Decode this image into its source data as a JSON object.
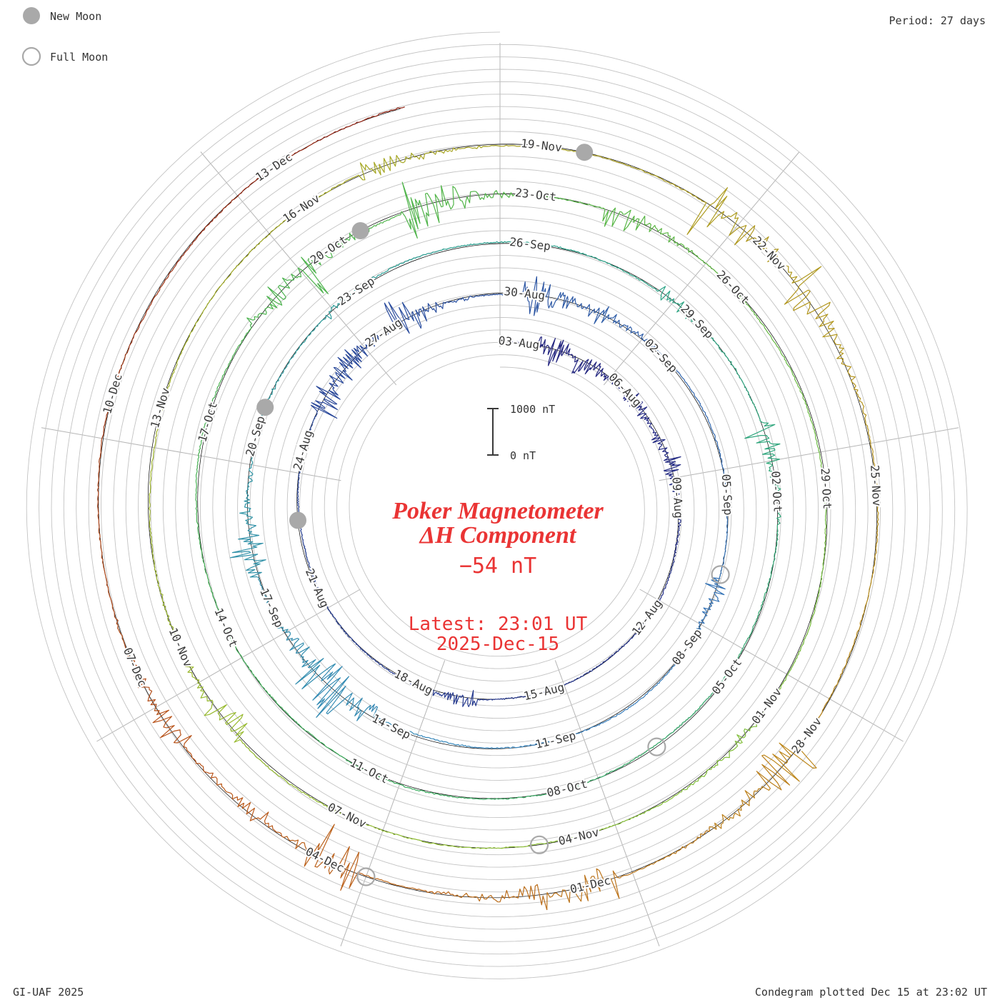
{
  "legend": {
    "new_moon": "New Moon",
    "full_moon": "Full Moon"
  },
  "header": {
    "period": "Period: 27 days"
  },
  "footer": {
    "left": "GI-UAF 2025",
    "right": "Condegram plotted Dec 15 at 23:02 UT"
  },
  "center": {
    "title_line1": "Poker Magnetometer",
    "title_line2": "ΔH Component",
    "current_value": "−54 nT",
    "latest_line1": "Latest: 23:01 UT",
    "latest_line2": "2025-Dec-15"
  },
  "scale": {
    "top": "1000 nT",
    "bottom": "0 nT"
  },
  "chart_data": {
    "type": "line",
    "projection": "polar-spiral-condegram",
    "title": "Poker Magnetometer ΔH Component",
    "station": "Poker",
    "component": "ΔH",
    "current_value_nT": -54,
    "latest_time": "23:01 UT",
    "latest_date": "2025-Dec-15",
    "angular_period_days": 27,
    "label_interval_days": 3,
    "start_date": "03-Aug",
    "end_date": "15-Dec",
    "scale_bar": {
      "labels": [
        "1000 nT",
        "0 nT"
      ],
      "span_nT": 1000
    },
    "rotations": [
      {
        "start": "03-Aug",
        "end": "30-Aug",
        "color_range": "navy to blue"
      },
      {
        "start": "30-Aug",
        "end": "26-Sep",
        "color_range": "blue to teal"
      },
      {
        "start": "26-Sep",
        "end": "23-Oct",
        "color_range": "teal to green"
      },
      {
        "start": "23-Oct",
        "end": "19-Nov",
        "color_range": "green to olive"
      },
      {
        "start": "19-Nov",
        "end": "15-Dec",
        "color_range": "olive to orange to dark red"
      }
    ],
    "date_labels": [
      {
        "date": "03-Aug",
        "day": 0
      },
      {
        "date": "06-Aug",
        "day": 3
      },
      {
        "date": "09-Aug",
        "day": 6
      },
      {
        "date": "12-Aug",
        "day": 9
      },
      {
        "date": "15-Aug",
        "day": 12
      },
      {
        "date": "18-Aug",
        "day": 15
      },
      {
        "date": "21-Aug",
        "day": 18
      },
      {
        "date": "24-Aug",
        "day": 21
      },
      {
        "date": "27-Aug",
        "day": 24
      },
      {
        "date": "30-Aug",
        "day": 27
      },
      {
        "date": "02-Sep",
        "day": 30
      },
      {
        "date": "05-Sep",
        "day": 33
      },
      {
        "date": "08-Sep",
        "day": 36
      },
      {
        "date": "11-Sep",
        "day": 39
      },
      {
        "date": "14-Sep",
        "day": 42
      },
      {
        "date": "17-Sep",
        "day": 45
      },
      {
        "date": "20-Sep",
        "day": 48
      },
      {
        "date": "23-Sep",
        "day": 51
      },
      {
        "date": "26-Sep",
        "day": 54
      },
      {
        "date": "29-Sep",
        "day": 57
      },
      {
        "date": "02-Oct",
        "day": 60
      },
      {
        "date": "05-Oct",
        "day": 63
      },
      {
        "date": "08-Oct",
        "day": 66
      },
      {
        "date": "11-Oct",
        "day": 69
      },
      {
        "date": "14-Oct",
        "day": 72
      },
      {
        "date": "17-Oct",
        "day": 75
      },
      {
        "date": "20-Oct",
        "day": 78
      },
      {
        "date": "23-Oct",
        "day": 81
      },
      {
        "date": "26-Oct",
        "day": 84
      },
      {
        "date": "29-Oct",
        "day": 87
      },
      {
        "date": "01-Nov",
        "day": 90
      },
      {
        "date": "04-Nov",
        "day": 93
      },
      {
        "date": "07-Nov",
        "day": 96
      },
      {
        "date": "10-Nov",
        "day": 99
      },
      {
        "date": "13-Nov",
        "day": 102
      },
      {
        "date": "16-Nov",
        "day": 105
      },
      {
        "date": "19-Nov",
        "day": 108
      },
      {
        "date": "22-Nov",
        "day": 111
      },
      {
        "date": "25-Nov",
        "day": 114
      },
      {
        "date": "28-Nov",
        "day": 117
      },
      {
        "date": "01-Dec",
        "day": 120
      },
      {
        "date": "04-Dec",
        "day": 123
      },
      {
        "date": "07-Dec",
        "day": 126
      },
      {
        "date": "10-Dec",
        "day": 129
      },
      {
        "date": "13-Dec",
        "day": 132
      }
    ],
    "moon_events": {
      "new": [
        {
          "date": "23-Aug",
          "day": 20
        },
        {
          "date": "21-Sep",
          "day": 49
        },
        {
          "date": "21-Oct",
          "day": 79
        },
        {
          "date": "20-Nov",
          "day": 109
        }
      ],
      "full": [
        {
          "date": "07-Sep",
          "day": 35
        },
        {
          "date": "07-Oct",
          "day": 65
        },
        {
          "date": "05-Nov",
          "day": 94
        },
        {
          "date": "04-Dec",
          "day": 123
        }
      ]
    },
    "color_stops": [
      {
        "day": 0,
        "color": "#23237d"
      },
      {
        "day": 24,
        "color": "#2a4a9c"
      },
      {
        "day": 40,
        "color": "#3a85c0"
      },
      {
        "day": 54,
        "color": "#2aa28f"
      },
      {
        "day": 68,
        "color": "#3aac60"
      },
      {
        "day": 82,
        "color": "#55b646"
      },
      {
        "day": 95,
        "color": "#92c235"
      },
      {
        "day": 108,
        "color": "#a8a322"
      },
      {
        "day": 117,
        "color": "#bd8a1c"
      },
      {
        "day": 125,
        "color": "#ba571b"
      },
      {
        "day": 134,
        "color": "#8f2012"
      }
    ]
  }
}
